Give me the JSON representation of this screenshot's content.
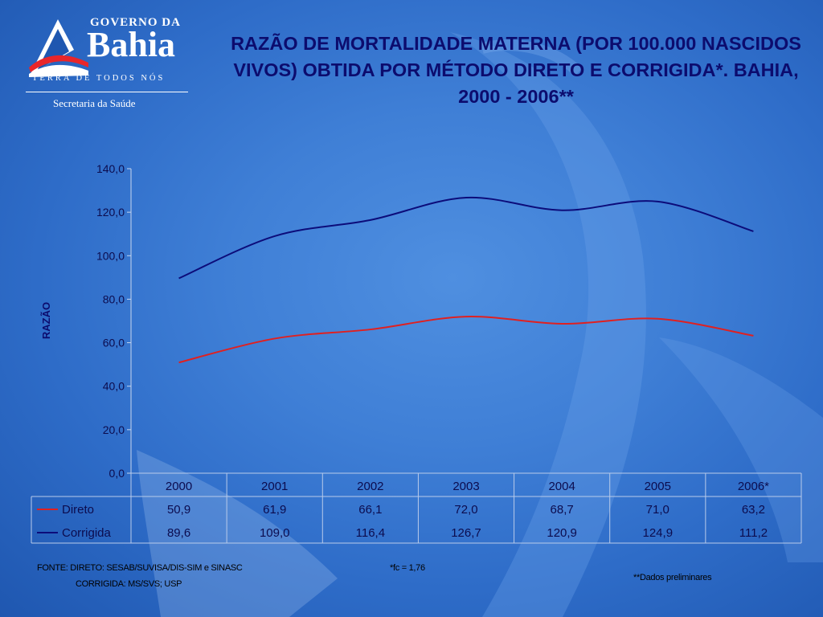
{
  "logo": {
    "top_text": "GOVERNO DA",
    "main_text": "Bahia",
    "tagline": "TERRA DE TODOS NÓS",
    "department": "Secretaria da Saúde"
  },
  "chart_data": {
    "type": "line",
    "title": "RAZÃO DE MORTALIDADE MATERNA (POR 100.000 NASCIDOS VIVOS) OBTIDA POR MÉTODO DIRETO E CORRIGIDA*.  BAHIA, 2000 - 2006**",
    "ylabel": "RAZÃO",
    "xlabel": "",
    "ylim": [
      0,
      140
    ],
    "y_ticks": [
      "0,0",
      "20,0",
      "40,0",
      "60,0",
      "80,0",
      "100,0",
      "120,0",
      "140,0"
    ],
    "categories": [
      "2000",
      "2001",
      "2002",
      "2003",
      "2004",
      "2005",
      "2006*"
    ],
    "series": [
      {
        "name": "Direto",
        "color": "#e02020",
        "values": [
          50.9,
          61.9,
          66.1,
          72.0,
          68.7,
          71.0,
          63.2
        ],
        "labels": [
          "50,9",
          "61,9",
          "66,1",
          "72,0",
          "68,7",
          "71,0",
          "63,2"
        ]
      },
      {
        "name": "Corrigida",
        "color": "#0c0c7a",
        "values": [
          89.6,
          109.0,
          116.4,
          126.7,
          120.9,
          124.9,
          111.2
        ],
        "labels": [
          "89,6",
          "109,0",
          "116,4",
          "126,7",
          "120,9",
          "124,9",
          "111,2"
        ]
      }
    ],
    "data_table": true,
    "grid": false
  },
  "footer": {
    "source_line1": "FONTE: DIRETO: SESAB/SUVISA/DIS-SIM e SINASC",
    "source_line2": "CORRIGIDA: MS/SVS; USP",
    "factor_note": "*fc = 1,76",
    "preliminary_note": "**Dados preliminares"
  }
}
